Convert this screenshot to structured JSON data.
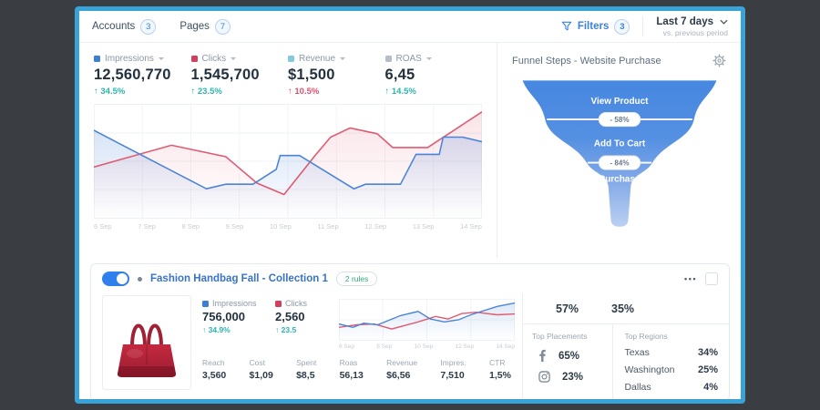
{
  "header": {
    "accounts_label": "Accounts",
    "accounts_count": "3",
    "pages_label": "Pages",
    "pages_count": "7",
    "filters_label": "Filters",
    "filters_count": "3",
    "date_range": "Last 7 days",
    "date_compare": "vs. previous period"
  },
  "metrics": [
    {
      "label": "Impressions",
      "value": "12,560,770",
      "delta": "34.5%",
      "direction": "up",
      "marker_color": "#3e7fd4",
      "delta_color": "#2ab5b0"
    },
    {
      "label": "Clicks",
      "value": "1,545,700",
      "delta": "23.5%",
      "direction": "up",
      "marker_color": "#d23f5e",
      "delta_color": "#2ab5b0"
    },
    {
      "label": "Revenue",
      "value": "$1,500",
      "delta": "10.5%",
      "direction": "up",
      "marker_color": "#85c9dd",
      "delta_color": "#e0506e"
    },
    {
      "label": "ROAS",
      "value": "6,45",
      "delta": "14.5%",
      "direction": "up",
      "marker_color": "#b4bec8",
      "delta_color": "#2ab5b0"
    }
  ],
  "funnel": {
    "title": "Funnel Steps - Website Purchase",
    "steps": [
      "View Product",
      "Add To Cart",
      "Purchase"
    ],
    "conversions": [
      "- 58%",
      "- 84%"
    ]
  },
  "campaign": {
    "title": "Fashion Handbag Fall - Collection 1",
    "rules_badge": "2 rules",
    "toggle_state": "on",
    "metrics": [
      {
        "label": "Impressions",
        "value": "756,000",
        "delta": "34.9%",
        "marker_color": "#3e7fd4"
      },
      {
        "label": "Clicks",
        "value": "2,560",
        "delta": "23.5",
        "marker_color": "#d23f5e"
      }
    ],
    "stats": [
      {
        "label": "Reach",
        "value": "3,560"
      },
      {
        "label": "Cost",
        "value": "$1,09"
      },
      {
        "label": "Spent",
        "value": "$8,5"
      },
      {
        "label": "Roas",
        "value": "56,13"
      },
      {
        "label": "Revenue",
        "value": "$6,56"
      },
      {
        "label": "Impres.",
        "value": "7,510"
      },
      {
        "label": "CTR",
        "value": "1,5%"
      }
    ],
    "split": [
      "57%",
      "35%"
    ],
    "placements": {
      "title": "Top Placements",
      "items": [
        {
          "name": "facebook",
          "value": "65%"
        },
        {
          "name": "instagram",
          "value": "23%"
        }
      ]
    },
    "regions": {
      "title": "Top Regions",
      "items": [
        {
          "name": "Texas",
          "value": "34%"
        },
        {
          "name": "Washington",
          "value": "25%"
        },
        {
          "name": "Dallas",
          "value": "4%"
        }
      ]
    }
  },
  "chart_data": [
    {
      "type": "line",
      "title": "Main performance chart (Impressions vs Clicks)",
      "x_labels": [
        "6 Sep",
        "7 Sep",
        "8 Sep",
        "9 Sep",
        "10 Sep",
        "11 Sep",
        "12 Sep",
        "13 Sep",
        "14 Sep"
      ],
      "ylim": [
        0,
        100
      ],
      "grid": true,
      "legend_position": "top-metrics",
      "series": [
        {
          "name": "Impressions",
          "color": "#4a84d8",
          "x": [
            0,
            29,
            34,
            41,
            47,
            48,
            53,
            67,
            70,
            79,
            83,
            89,
            90,
            95,
            100
          ],
          "values": [
            77,
            26,
            30,
            30,
            43,
            55,
            55,
            26,
            30,
            30,
            56,
            56,
            71,
            71,
            67
          ]
        },
        {
          "name": "Clicks",
          "color": "#e05a72",
          "x": [
            0,
            20,
            34,
            42,
            49,
            57,
            61,
            66,
            73,
            77,
            86,
            100
          ],
          "values": [
            45,
            64,
            54,
            31,
            21,
            55,
            71,
            79,
            74,
            62,
            62,
            93
          ]
        }
      ]
    },
    {
      "type": "line",
      "title": "Campaign mini chart (Impressions vs Clicks)",
      "x_labels": [
        "6 Sep",
        "8 Sep",
        "10 Sep",
        "12 Sep",
        "14 Sep"
      ],
      "ylim": [
        0,
        100
      ],
      "grid": true,
      "series": [
        {
          "name": "Impressions",
          "color": "#4a84d8",
          "x": [
            0,
            8,
            14,
            22,
            35,
            45,
            52,
            60,
            68,
            75,
            90,
            100
          ],
          "values": [
            40,
            32,
            42,
            38,
            60,
            70,
            52,
            45,
            50,
            62,
            82,
            90
          ]
        },
        {
          "name": "Clicks",
          "color": "#e05a72",
          "x": [
            0,
            10,
            20,
            30,
            45,
            55,
            62,
            70,
            78,
            90,
            100
          ],
          "values": [
            32,
            38,
            40,
            28,
            45,
            58,
            52,
            65,
            68,
            62,
            64
          ]
        }
      ]
    }
  ],
  "icons": {
    "filter": "funnel-outline",
    "settings": "gear",
    "more": "ellipsis",
    "chevron": "chevron-down",
    "trend_up": "↑",
    "facebook": "f-logo",
    "instagram": "camera-outline"
  },
  "colors": {
    "frame": "#39a2d6",
    "teal": "#2ab5b0",
    "pink": "#e0506e",
    "blue": "#3e7fd4",
    "red": "#d23f5e",
    "funnel_blue": "#4687e0"
  }
}
